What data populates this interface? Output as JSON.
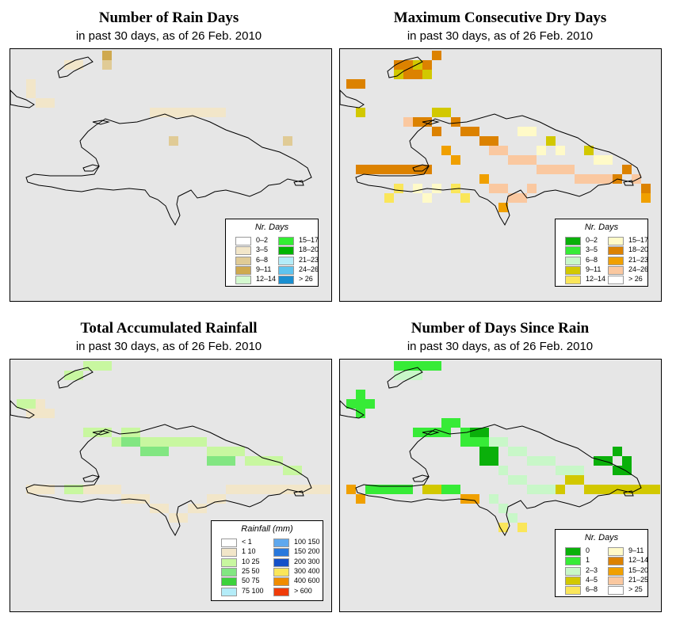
{
  "panels": [
    {
      "id": "rain-days",
      "title": "Number of Rain Days",
      "subtitle": "in past 30 days, as of  26 Feb. 2010",
      "legend": {
        "title": "Nr. Days",
        "items": [
          {
            "label": "0–2",
            "color": "#ffffff"
          },
          {
            "label": "3–5",
            "color": "#f2e6c9"
          },
          {
            "label": "6–8",
            "color": "#e0cb96"
          },
          {
            "label": "9–11",
            "color": "#cfa94f"
          },
          {
            "label": "12–14",
            "color": "#d4f9cf"
          },
          {
            "label": "15–17",
            "color": "#33ee33"
          },
          {
            "label": "18–20",
            "color": "#00b400"
          },
          {
            "label": "21–23",
            "color": "#b4ecf8"
          },
          {
            "label": "24–26",
            "color": "#5fc4ee"
          },
          {
            "label": "> 26",
            "color": "#1a8fd0"
          }
        ]
      }
    },
    {
      "id": "max-dry-days",
      "title": "Maximum Consecutive Dry Days",
      "subtitle": "in past 30 days, as of  26 Feb. 2010",
      "legend": {
        "title": "Nr. Days",
        "items": [
          {
            "label": "0–2",
            "color": "#0ab00a"
          },
          {
            "label": "3–5",
            "color": "#37eb37"
          },
          {
            "label": "6–8",
            "color": "#c8f7c8"
          },
          {
            "label": "9–11",
            "color": "#d2c800"
          },
          {
            "label": "12–14",
            "color": "#fae65a"
          },
          {
            "label": "15–17",
            "color": "#fffac8"
          },
          {
            "label": "18–20",
            "color": "#dc8200"
          },
          {
            "label": "21–23",
            "color": "#f0a000"
          },
          {
            "label": "24–26",
            "color": "#fac8a0"
          },
          {
            "label": "> 26",
            "color": "#ffffff"
          }
        ]
      }
    },
    {
      "id": "total-rainfall",
      "title": "Total Accumulated Rainfall",
      "subtitle": "in past 30 days, as of  26 Feb. 2010",
      "legend": {
        "title": "Rainfall (mm)",
        "items": [
          {
            "label": "< 1",
            "color": "#ffffff"
          },
          {
            "label": "1    10",
            "color": "#f2e6c9"
          },
          {
            "label": "10    25",
            "color": "#c8f7a0"
          },
          {
            "label": "25    50",
            "color": "#82e682"
          },
          {
            "label": "50    75",
            "color": "#3cd23c"
          },
          {
            "label": "75   100",
            "color": "#b4ecf8"
          },
          {
            "label": "100   150",
            "color": "#5fa8ee"
          },
          {
            "label": "150   200",
            "color": "#2878dc"
          },
          {
            "label": "200   300",
            "color": "#1450c8"
          },
          {
            "label": "300   400",
            "color": "#fae65a"
          },
          {
            "label": "400   600",
            "color": "#f08c00"
          },
          {
            "label": "> 600",
            "color": "#f03c0a"
          }
        ]
      }
    },
    {
      "id": "days-since-rain",
      "title": "Number of Days Since Rain",
      "subtitle": "in past 30 days, as of  26 Feb. 2010",
      "legend": {
        "title": "Nr. Days",
        "items": [
          {
            "label": "0",
            "color": "#0ab00a"
          },
          {
            "label": "1",
            "color": "#37eb37"
          },
          {
            "label": "2–3",
            "color": "#c8f7c8"
          },
          {
            "label": "4–5",
            "color": "#d2c800"
          },
          {
            "label": "6–8",
            "color": "#fae65a"
          },
          {
            "label": "9–11",
            "color": "#fffac8"
          },
          {
            "label": "12–14",
            "color": "#dc8200"
          },
          {
            "label": "15–20",
            "color": "#f0a000"
          },
          {
            "label": "21–25",
            "color": "#fac8a0"
          },
          {
            "label": "> 25",
            "color": "#ffffff"
          }
        ]
      }
    }
  ]
}
